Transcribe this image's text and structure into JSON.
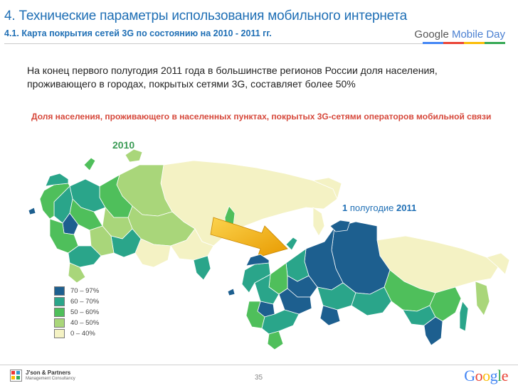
{
  "header": {
    "title": "4. Технические параметры использования мобильного интернета",
    "subtitle": "4.1. Карта покрытия сетей 3G по состоянию на 2010 - 2011 гг.",
    "brand_prefix": "Google",
    "brand_suffix": "Mobile Day"
  },
  "lead_text": "На конец первого полугодия 2011 года в большинстве регионов России доля населения, проживающего в городах, покрытых сетями 3G, составляет более 50%",
  "caption": "Доля населения, проживающего в населенных пунктах, покрытых 3G-сетями операторов мобильной связи",
  "maps": {
    "left_label": "2010",
    "right_label_num": "1",
    "right_label_mid": " полугодие ",
    "right_label_year": "2011"
  },
  "legend": [
    {
      "label": "70 – 97%",
      "color": "#1d5f8f"
    },
    {
      "label": "60 – 70%",
      "color": "#2aa58a"
    },
    {
      "label": "50 – 60%",
      "color": "#4fbf5b"
    },
    {
      "label": "40 – 50%",
      "color": "#a9d67a"
    },
    {
      "label": "0 – 40%",
      "color": "#f4f2c4"
    }
  ],
  "colors": {
    "dark_blue": "#1d5f8f",
    "teal": "#2aa58a",
    "green": "#4fbf5b",
    "light_green": "#a9d67a",
    "cream": "#f4f2c4",
    "arrow": "#f4b400"
  },
  "footer": {
    "partner_name": "J'son & Partners",
    "partner_sub": "Management Consultancy",
    "page_number": "35",
    "google_letters": [
      "G",
      "o",
      "o",
      "g",
      "l",
      "e"
    ]
  }
}
